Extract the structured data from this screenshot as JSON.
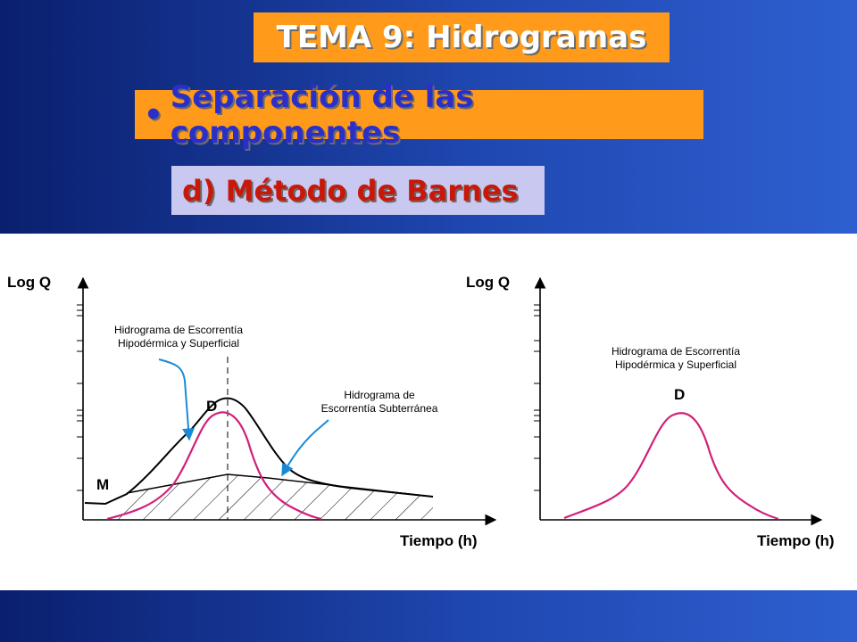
{
  "slide": {
    "title": "TEMA 9: Hidrogramas",
    "subtitle_bullet": "•",
    "subtitle": "Separación de las componentes",
    "method": "d) Método de Barnes"
  },
  "left_graph": {
    "y_axis_label": "Log Q",
    "x_axis_label": "Tiempo (h)",
    "label_point_d": "D",
    "label_point_m": "M",
    "annotation_surface_line1": "Hidrograma de Escorrentía",
    "annotation_surface_line2": "Hipodérmica y Superficial",
    "annotation_ground_line1": "Hidrograma de",
    "annotation_ground_line2": "Escorrentía Subterránea"
  },
  "right_graph": {
    "y_axis_label": "Log Q",
    "x_axis_label": "Tiempo (h)",
    "label_point_d": "D",
    "annotation_surface_line1": "Hidrograma de Escorrentía",
    "annotation_surface_line2": "Hipodérmica y Superficial"
  },
  "colors": {
    "background_dark": "#0a1f6e",
    "background_light": "#2e5fd0",
    "title_box": "#ff9a1a",
    "subtitle_text": "#2a2fc8",
    "method_box": "#c8c8f0",
    "method_text": "#c8180a",
    "surface_curve": "#d0207a",
    "arrow": "#1a8ad8"
  }
}
